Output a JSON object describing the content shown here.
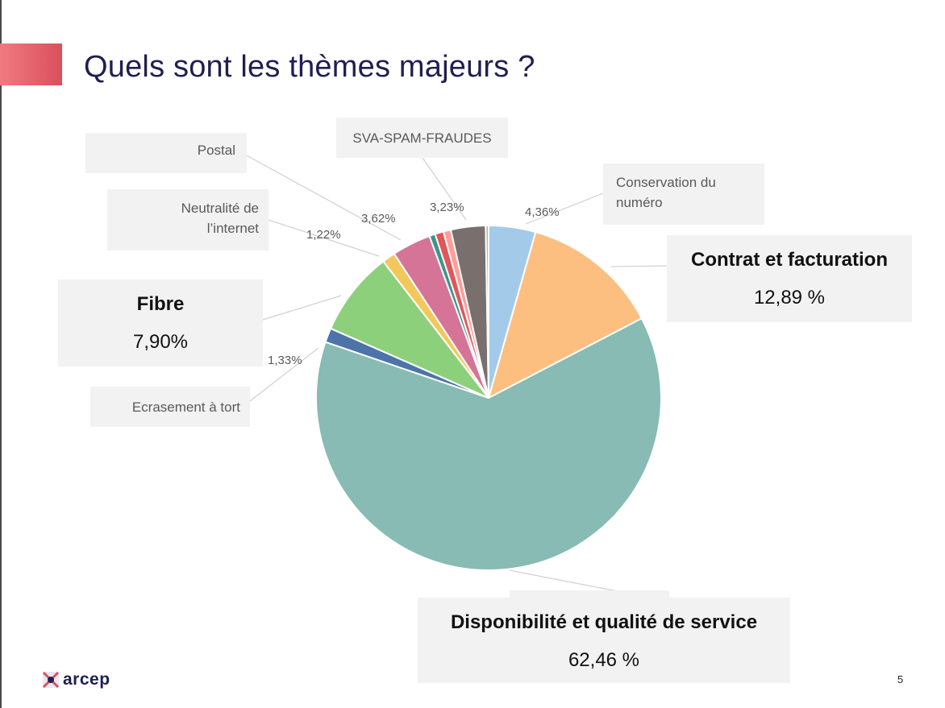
{
  "slide": {
    "title": "Quels sont les thèmes majeurs ?",
    "page_number": "5",
    "logo_text": "arcep"
  },
  "labels": {
    "postal": "Postal",
    "sva": "SVA-SPAM-FRAUDES",
    "conservation_1": "Conservation du",
    "conservation_2": "numéro",
    "neutralite_1": "Neutralité de",
    "neutralite_2": "l’internet",
    "contrat": "Contrat et facturation",
    "contrat_pct": "12,89 %",
    "fibre": "Fibre",
    "fibre_pct": "7,90%",
    "ecrasement": "Ecrasement à tort",
    "dispo": "Disponibilité et qualité de service",
    "dispo_pct": "62,46 %"
  },
  "small_pct_labels": {
    "postal": "3,62%",
    "sva": "3,23%",
    "conservation": "4,36%",
    "neutralite": "1,22%",
    "ecrasement": "1,33%"
  },
  "chart_data": {
    "type": "pie",
    "start_angle_deg": 0,
    "direction": "clockwise",
    "slices": [
      {
        "label": "Conservation du numéro",
        "value": 4.36,
        "color": "#a3cbe9"
      },
      {
        "label": "Contrat et facturation",
        "value": 12.89,
        "color": "#fdbf80"
      },
      {
        "label": "Disponibilité et qualité de service",
        "value": 62.46,
        "color": "#87bbb3"
      },
      {
        "label": "Ecrasement à tort",
        "value": 1.33,
        "color": "#4d74a8"
      },
      {
        "label": "Fibre",
        "value": 7.9,
        "color": "#8dd07c"
      },
      {
        "label": "Neutralité de l’internet",
        "value": 1.22,
        "color": "#f2c75c"
      },
      {
        "label": "Postal",
        "value": 3.62,
        "color": "#d57497"
      },
      {
        "label": "",
        "value": 0.55,
        "color": "#3f9488"
      },
      {
        "label": "",
        "value": 0.8,
        "color": "#e15759"
      },
      {
        "label": "",
        "value": 0.69,
        "color": "#ff9d9a"
      },
      {
        "label": "SVA-SPAM-FRAUDES",
        "value": 3.23,
        "color": "#79706e"
      },
      {
        "label": "",
        "value": 0.27,
        "color": "#bab0ac"
      }
    ]
  }
}
